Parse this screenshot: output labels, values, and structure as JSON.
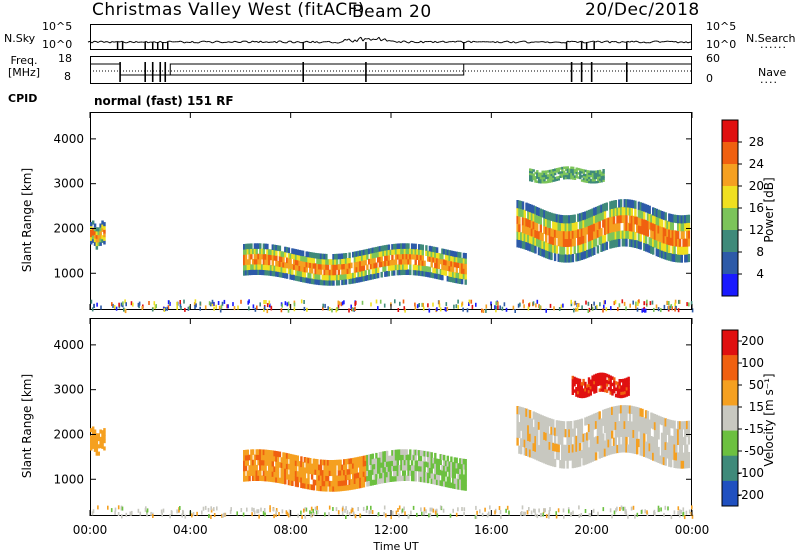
{
  "header": {
    "station": "Christmas Valley West (fitACF)",
    "beam": "Beam 20",
    "date": "20/Dec/2018"
  },
  "param_panels": {
    "nsky_label": "N.Sky",
    "nsky_ticks": [
      "10^5",
      "10^0"
    ],
    "nsearch_label": "N.Search",
    "nsearch_ticks": [
      "10^5",
      "10^0"
    ],
    "freq_label_1": "Freq.",
    "freq_label_2": "[MHz]",
    "freq_ticks": [
      "18",
      "8"
    ],
    "nave_label": "Nave",
    "nave_ticks": [
      "60",
      "0"
    ],
    "cpid_label": "CPID",
    "cpid_value": "normal (fast) 151 RF"
  },
  "chart_data": [
    {
      "type": "heatmap",
      "name": "power",
      "ylabel": "Slant Range [km]",
      "xlabel": "Time UT",
      "xlim": [
        0,
        24
      ],
      "ylim": [
        180,
        4600
      ],
      "x_ticks": [
        "00:00",
        "04:00",
        "08:00",
        "12:00",
        "16:00",
        "20:00",
        "00:00"
      ],
      "y_ticks": [
        "1000",
        "2000",
        "3000",
        "4000"
      ],
      "colorbar_label": "Power [dB]",
      "colorbar_ticks": [
        "4",
        "8",
        "12",
        "16",
        "20",
        "24",
        "28"
      ],
      "colors": [
        "#1a1aff",
        "#2d5aa8",
        "#3f8a7a",
        "#7cc45a",
        "#f0e020",
        "#f5a020",
        "#f06010",
        "#e01010"
      ],
      "echo_regions": [
        {
          "t_start": 0.0,
          "t_end": 0.6,
          "r_min": 1500,
          "r_max": 2200
        },
        {
          "t_start": 6.1,
          "t_end": 15.0,
          "r_min": 700,
          "r_max": 1700
        },
        {
          "t_start": 17.0,
          "t_end": 23.9,
          "r_min": 1200,
          "r_max": 2700
        },
        {
          "t_start": 17.5,
          "t_end": 20.5,
          "r_min": 3000,
          "r_max": 3400
        }
      ]
    },
    {
      "type": "heatmap",
      "name": "velocity",
      "ylabel": "Slant Range [km]",
      "xlabel": "Time UT",
      "xlim": [
        0,
        24
      ],
      "ylim": [
        180,
        4600
      ],
      "x_ticks": [
        "00:00",
        "04:00",
        "08:00",
        "12:00",
        "16:00",
        "20:00",
        "00:00"
      ],
      "y_ticks": [
        "1000",
        "2000",
        "3000",
        "4000"
      ],
      "colorbar_label": "Velocity [m s⁻¹]",
      "colorbar_ticks": [
        "200",
        "100",
        "50",
        "15",
        "-15",
        "-50",
        "-100",
        "-200"
      ],
      "colors": [
        "#2050c0",
        "#3f8a7a",
        "#6cc040",
        "#c8c8c0",
        "#f5a020",
        "#f06010",
        "#e01010"
      ],
      "echo_regions": [
        {
          "t_start": 0.0,
          "t_end": 0.6,
          "r_min": 1500,
          "r_max": 2200
        },
        {
          "t_start": 6.1,
          "t_end": 15.0,
          "r_min": 700,
          "r_max": 1700
        },
        {
          "t_start": 17.0,
          "t_end": 23.9,
          "r_min": 1200,
          "r_max": 2700
        },
        {
          "t_start": 19.2,
          "t_end": 21.5,
          "r_min": 2800,
          "r_max": 3400
        }
      ]
    }
  ]
}
